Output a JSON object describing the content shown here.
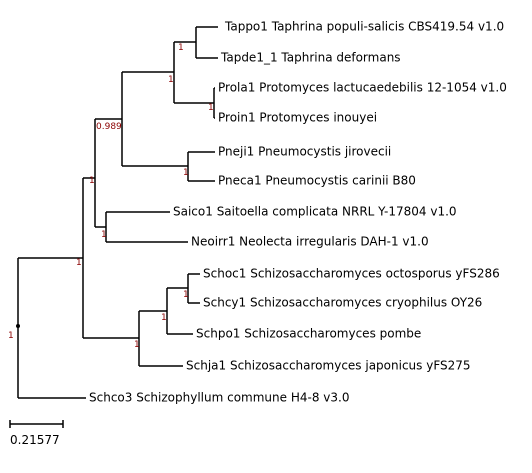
{
  "leaves": [
    "Tappo1 Taphrina populi-salicis CBS419.54 v1.0",
    "Tapde1_1 Taphrina deformans",
    "Prola1 Protomyces lactucaedebilis 12-1054 v1.0",
    "Proin1 Protomyces inouyei",
    "Pneji1 Pneumocystis jirovecii",
    "Pneca1 Pneumocystis carinii B80",
    "Saico1 Saitoella complicata NRRL Y-17804 v1.0",
    "Neoirr1 Neolecta irregularis DAH-1 v1.0",
    "Schoc1 Schizosaccharomyces octosporus yFS286",
    "Schcy1 Schizosaccharomyces cryophilus OY26",
    "Schpo1 Schizosaccharomyces pombe",
    "Schja1 Schizosaccharomyces japonicus yFS275",
    "Schco3 Schizophyllum commune H4-8 v3.0"
  ],
  "supports": [
    1,
    1,
    1,
    1,
    0.989,
    1,
    1,
    1,
    1,
    1,
    1,
    1
  ],
  "scale_bar": 0.21577
}
